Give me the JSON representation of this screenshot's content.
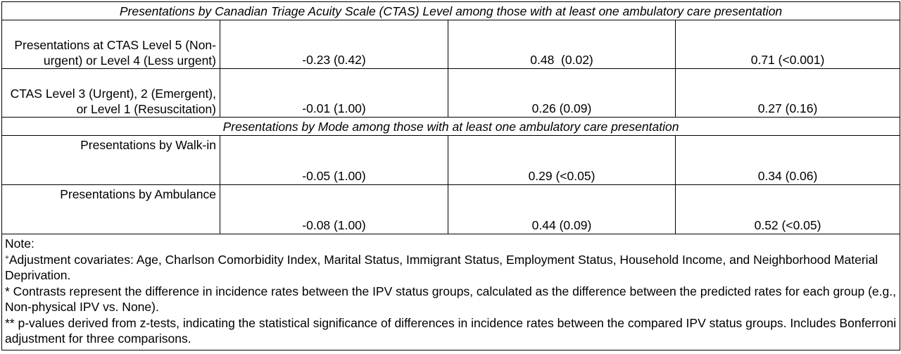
{
  "sections": [
    {
      "title": "Presentations by Canadian Triage Acuity Scale (CTAS) Level among those with at least one ambulatory care presentation",
      "rows": [
        {
          "label": "Presentations at CTAS Level 5 (Non-urgent) or Level 4 (Less urgent)",
          "values": [
            "-0.23 (0.42)",
            "0.48  (0.02)",
            "0.71 (<0.001)"
          ]
        },
        {
          "label": "CTAS Level 3 (Urgent), 2 (Emergent), or Level 1 (Resuscitation)",
          "values": [
            "-0.01 (1.00)",
            "0.26 (0.09)",
            "0.27 (0.16)"
          ]
        }
      ]
    },
    {
      "title": "Presentations by Mode among those with at least one ambulatory care presentation",
      "rows": [
        {
          "label": "Presentations by Walk-in",
          "values": [
            "-0.05 (1.00)",
            "0.29 (<0.05)",
            "0.34 (0.06)"
          ]
        },
        {
          "label": "Presentations by Ambulance",
          "values": [
            "-0.08 (1.00)",
            "0.44 (0.09)",
            "0.52 (<0.05)"
          ]
        }
      ]
    }
  ],
  "notes": {
    "heading": "Note:",
    "plus_mark": "+",
    "covariates": "Adjustment covariates: Age, Charlson Comorbidity Index, Marital Status, Immigrant Status, Employment Status, Household Income, and Neighborhood Material Deprivation.",
    "contrasts": "* Contrasts represent the difference in incidence rates between the IPV status groups, calculated as the difference between the predicted rates for each group (e.g., Non-physical IPV vs. None).",
    "pvalues": "** p-values derived from z-tests, indicating the statistical significance of differences in incidence rates between the compared IPV status groups. Includes Bonferroni adjustment for three comparisons."
  }
}
